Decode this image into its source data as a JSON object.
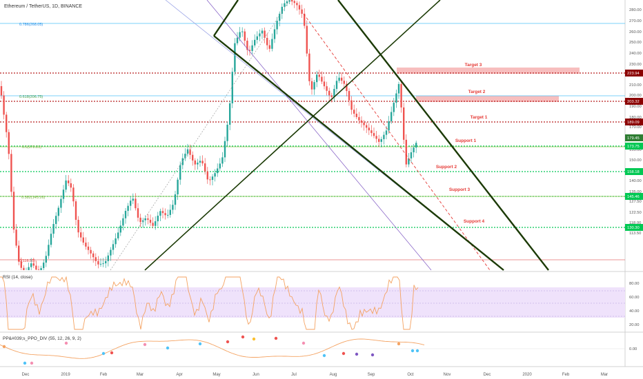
{
  "header": {
    "title": "Ethereum / TetherUS, 1D, BINANCE"
  },
  "rsi": {
    "label": "RSI (14, close)",
    "ticks": [
      "80.00",
      "60.00",
      "40.00",
      "20.00"
    ]
  },
  "ppo": {
    "label": "PP&#039;s_PPO_DIV (55, 12, 26, 9, 2)",
    "tick": "0.00"
  },
  "price_axis": {
    "ticks": [
      "280.00",
      "270.00",
      "260.00",
      "250.00",
      "240.00",
      "230.00",
      "220.00",
      "210.00",
      "200.00",
      "190.00",
      "180.00",
      "170.00",
      "162.50",
      "155.00",
      "150.00",
      "145.00",
      "140.00",
      "135.00",
      "127.50",
      "122.50",
      "118.00",
      "113.50"
    ],
    "badges": [
      {
        "text": "223.94",
        "color": "#8b0000"
      },
      {
        "text": "203.32",
        "color": "#8b0000"
      },
      {
        "text": "189.09",
        "color": "#8b0000"
      },
      {
        "text": "179.45",
        "color": "#2e7d32"
      },
      {
        "text": "173.75",
        "color": "#00c853"
      },
      {
        "text": "158.18",
        "color": "#00c853"
      },
      {
        "text": "145.46",
        "color": "#00c853"
      },
      {
        "text": "130.30",
        "color": "#00c853"
      }
    ]
  },
  "time_axis": {
    "labels": [
      "Dec",
      "2019",
      "Feb",
      "Mar",
      "Apr",
      "May",
      "Jun",
      "Jul",
      "Aug",
      "Sep",
      "Oct",
      "Nov",
      "Dec",
      "2020",
      "Feb",
      "Mar"
    ]
  },
  "fib_labels": [
    "0.786(268.05)",
    "0.618(206.75)",
    "0.5(172.21)",
    "0.382(145.16)",
    "0(116.55)"
  ],
  "zone_labels": [
    "Target 3",
    "Target 2",
    "Target 1",
    "Support 1",
    "Support 2",
    "Support 3",
    "Support 4"
  ],
  "chart_data": {
    "type": "candlestick",
    "title": "Ethereum / TetherUS, 1D, BINANCE",
    "levels": {
      "resistance": [
        223.94,
        203.32,
        189.09
      ],
      "support": [
        173.75,
        158.18,
        145.46,
        130.3
      ],
      "last_price": 179.45,
      "fibonacci": [
        {
          "ratio": "0.786",
          "price": 268.05
        },
        {
          "ratio": "0.618",
          "price": 206.75
        },
        {
          "ratio": "0.5",
          "price": 172.21
        },
        {
          "ratio": "0.382",
          "price": 145.16
        },
        {
          "ratio": "0",
          "price": 116.55
        }
      ]
    },
    "colors": {
      "up": "#26a69a",
      "down": "#ef5350",
      "support": "#00c853",
      "resistance": "#b71c1c",
      "trendline": "#1b3a05"
    },
    "rsi_range": [
      0,
      100
    ],
    "ppo_zero": 0.0
  }
}
